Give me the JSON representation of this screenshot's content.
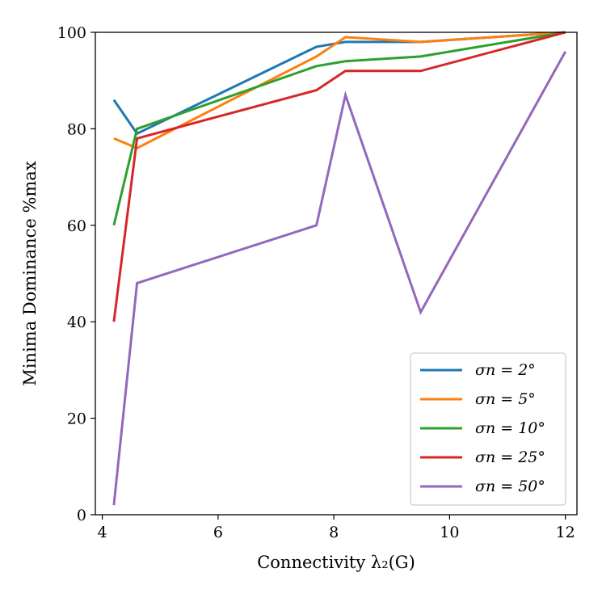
{
  "chart_data": {
    "type": "line",
    "title": "",
    "xlabel": "Connectivity λ₂(G)",
    "ylabel": "Minima Dominance %max",
    "xlim": [
      3.88,
      12.2
    ],
    "ylim": [
      0,
      100
    ],
    "xticks": [
      4,
      6,
      8,
      10,
      12
    ],
    "yticks": [
      0,
      20,
      40,
      60,
      80,
      100
    ],
    "grid": false,
    "legend_position": "lower-right",
    "series": [
      {
        "name": "σn = 2°",
        "color": "#1f77b4",
        "x": [
          4.2,
          4.6,
          7.7,
          8.2,
          9.5,
          12.0
        ],
        "y": [
          86,
          79,
          97,
          98,
          98,
          100
        ]
      },
      {
        "name": "σn = 5°",
        "color": "#ff7f0e",
        "x": [
          4.2,
          4.6,
          7.7,
          8.2,
          9.5,
          12.0
        ],
        "y": [
          78,
          76,
          95,
          99,
          98,
          100
        ]
      },
      {
        "name": "σn = 10°",
        "color": "#2ca02c",
        "x": [
          4.2,
          4.6,
          7.7,
          8.2,
          9.5,
          12.0
        ],
        "y": [
          60,
          80,
          93,
          94,
          95,
          100
        ]
      },
      {
        "name": "σn = 25°",
        "color": "#d62728",
        "x": [
          4.2,
          4.6,
          7.7,
          8.2,
          9.5,
          12.0
        ],
        "y": [
          40,
          78,
          88,
          92,
          92,
          100
        ]
      },
      {
        "name": "σn = 50°",
        "color": "#9467bd",
        "x": [
          4.2,
          4.6,
          7.7,
          8.2,
          9.5,
          12.0
        ],
        "y": [
          2,
          48,
          60,
          87,
          42,
          96
        ]
      }
    ]
  }
}
